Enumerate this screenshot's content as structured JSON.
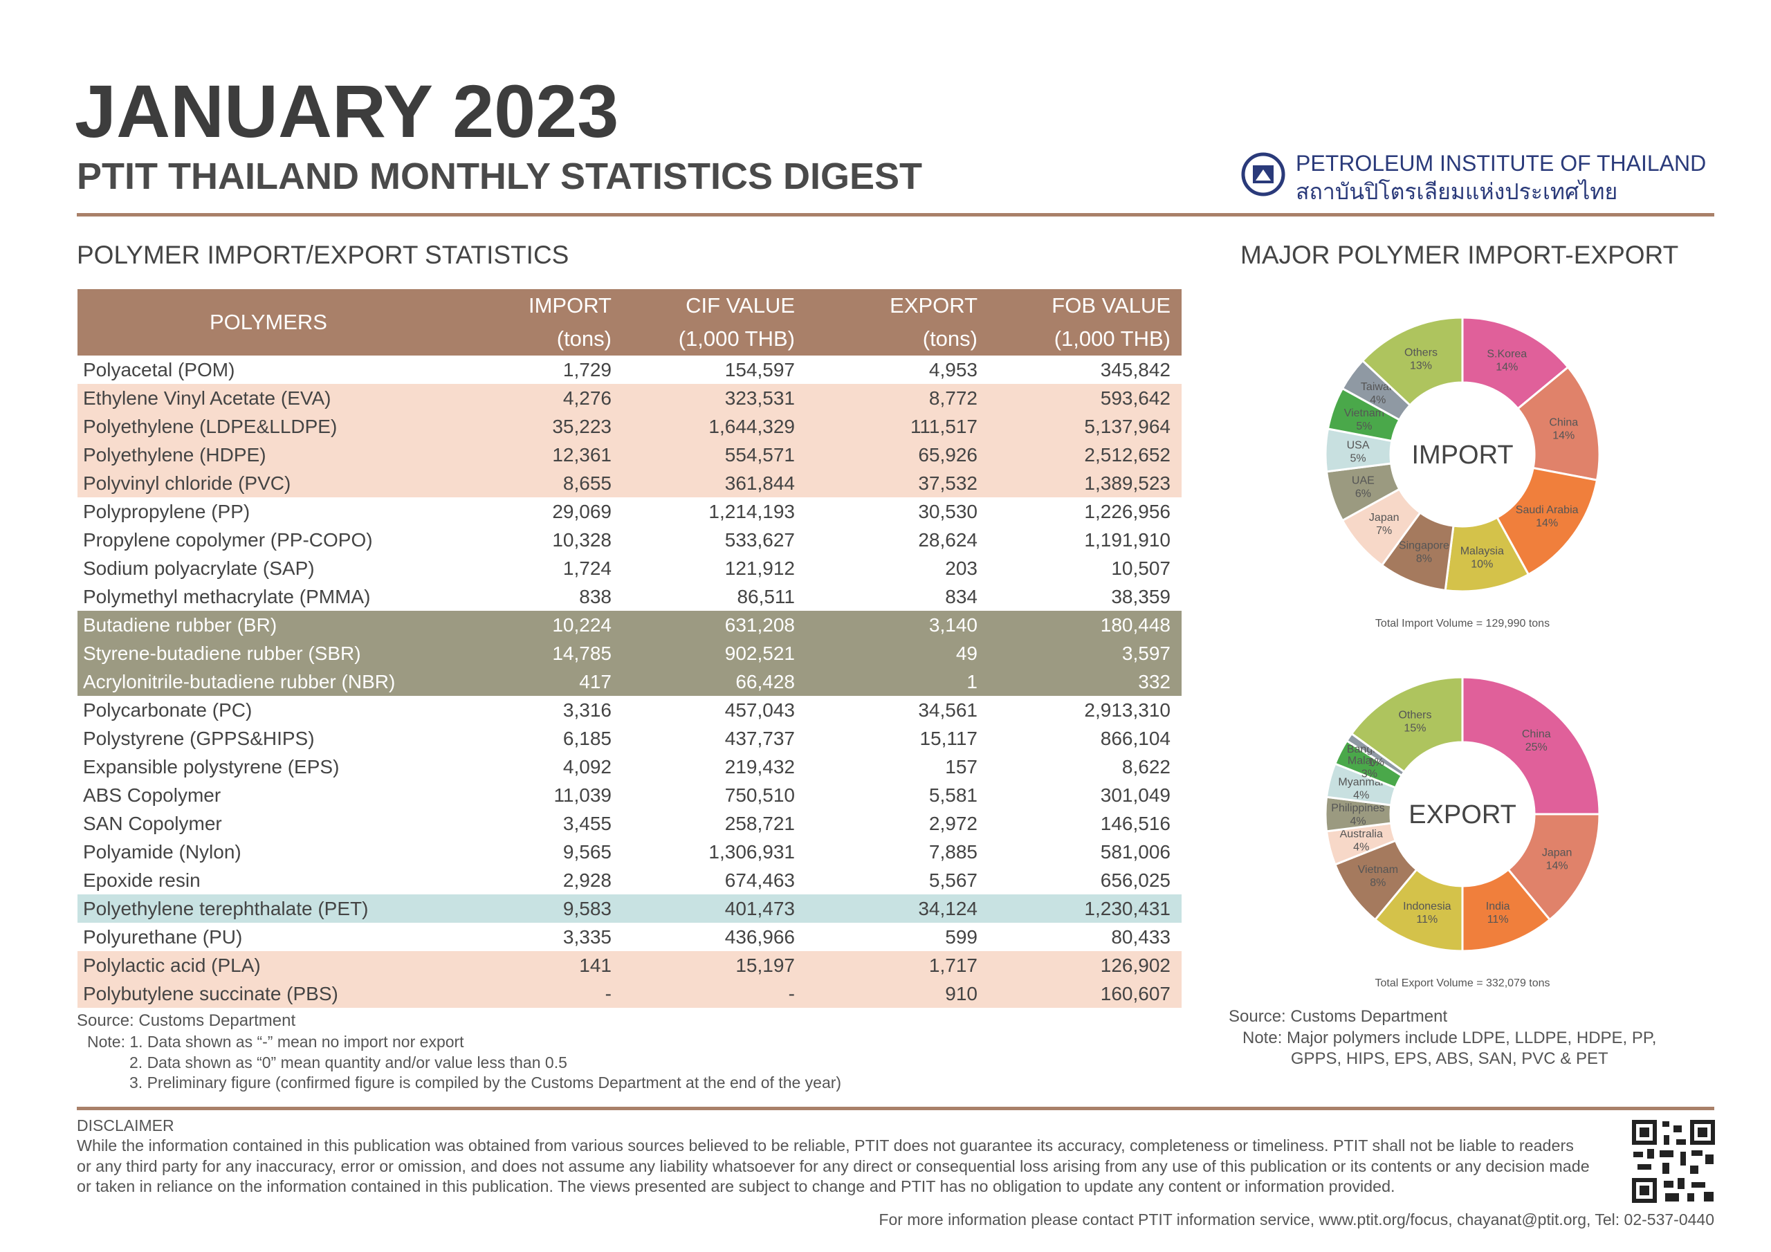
{
  "header": {
    "title": "JANUARY 2023",
    "subtitle": "PTIT THAILAND MONTHLY STATISTICS DIGEST",
    "org_en": "PETROLEUM INSTITUTE OF THAILAND",
    "org_th": "สถาบันปิโตรเลียมแห่งประเทศไทย"
  },
  "table": {
    "title": "POLYMER IMPORT/EXPORT STATISTICS",
    "header_color": "#a98069",
    "header": [
      [
        "POLYMERS"
      ],
      [
        "IMPORT",
        "(tons)"
      ],
      [
        "CIF VALUE",
        "(1,000 THB)"
      ],
      [
        "EXPORT",
        "(tons)"
      ],
      [
        "FOB VALUE",
        "(1,000 THB)"
      ]
    ],
    "rows": [
      {
        "cells": [
          "Polyacetal (POM)",
          "1,729",
          "154,597",
          "4,953",
          "345,842"
        ]
      },
      {
        "cells": [
          "Ethylene Vinyl Acetate (EVA)",
          "4,276",
          "323,531",
          "8,772",
          "593,642"
        ],
        "fill": "#f8dccd"
      },
      {
        "cells": [
          "Polyethylene (LDPE&LLDPE)",
          "35,223",
          "1,644,329",
          "111,517",
          "5,137,964"
        ],
        "fill": "#f8dccd"
      },
      {
        "cells": [
          "Polyethylene (HDPE)",
          "12,361",
          "554,571",
          "65,926",
          "2,512,652"
        ],
        "fill": "#f8dccd"
      },
      {
        "cells": [
          "Polyvinyl chloride (PVC)",
          "8,655",
          "361,844",
          "37,532",
          "1,389,523"
        ],
        "fill": "#f8dccd"
      },
      {
        "cells": [
          "Polypropylene (PP)",
          "29,069",
          "1,214,193",
          "30,530",
          "1,226,956"
        ]
      },
      {
        "cells": [
          "Propylene copolymer (PP-COPO)",
          "10,328",
          "533,627",
          "28,624",
          "1,191,910"
        ]
      },
      {
        "cells": [
          "Sodium polyacrylate (SAP)",
          "1,724",
          "121,912",
          "203",
          "10,507"
        ]
      },
      {
        "cells": [
          "Polymethyl methacrylate (PMMA)",
          "838",
          "86,511",
          "834",
          "38,359"
        ]
      },
      {
        "cells": [
          "Butadiene rubber (BR)",
          "10,224",
          "631,208",
          "3,140",
          "180,448"
        ],
        "fill": "#9c9a82",
        "text_color": "#ffffff"
      },
      {
        "cells": [
          "Styrene-butadiene rubber (SBR)",
          "14,785",
          "902,521",
          "49",
          "3,597"
        ],
        "fill": "#9c9a82",
        "text_color": "#ffffff"
      },
      {
        "cells": [
          "Acrylonitrile-butadiene rubber (NBR)",
          "417",
          "66,428",
          "1",
          "332"
        ],
        "fill": "#9c9a82",
        "text_color": "#ffffff"
      },
      {
        "cells": [
          "Polycarbonate (PC)",
          "3,316",
          "457,043",
          "34,561",
          "2,913,310"
        ]
      },
      {
        "cells": [
          "Polystyrene (GPPS&HIPS)",
          "6,185",
          "437,737",
          "15,117",
          "866,104"
        ]
      },
      {
        "cells": [
          "Expansible polystyrene (EPS)",
          "4,092",
          "219,432",
          "157",
          "8,622"
        ]
      },
      {
        "cells": [
          "ABS Copolymer",
          "11,039",
          "750,510",
          "5,581",
          "301,049"
        ]
      },
      {
        "cells": [
          "SAN Copolymer",
          "3,455",
          "258,721",
          "2,972",
          "146,516"
        ]
      },
      {
        "cells": [
          "Polyamide (Nylon)",
          "9,565",
          "1,306,931",
          "7,885",
          "581,006"
        ]
      },
      {
        "cells": [
          "Epoxide resin",
          "2,928",
          "674,463",
          "5,567",
          "656,025"
        ]
      },
      {
        "cells": [
          "Polyethylene terephthalate (PET)",
          "9,583",
          "401,473",
          "34,124",
          "1,230,431"
        ],
        "fill": "#c8e2e2"
      },
      {
        "cells": [
          "Polyurethane (PU)",
          "3,335",
          "436,966",
          "599",
          "80,433"
        ]
      },
      {
        "cells": [
          "Polylactic acid (PLA)",
          "141",
          "15,197",
          "1,717",
          "126,902"
        ],
        "fill": "#f8dccd"
      },
      {
        "cells": [
          "Polybutylene succinate (PBS)",
          "-",
          "-",
          "910",
          "160,607"
        ],
        "fill": "#f8dccd"
      }
    ],
    "source": "Source: Customs Department",
    "notes": [
      "Note: 1. Data shown as “-” mean no import nor export",
      "2. Data shown as “0” mean quantity and/or value less than 0.5",
      "3. Preliminary figure (confirmed figure is compiled by the Customs Department at the end of the year)"
    ]
  },
  "charts_title": "MAJOR POLYMER IMPORT-EXPORT",
  "chart_data": [
    {
      "type": "pie",
      "title": "IMPORT",
      "note": "Total Import Volume = 129,990 tons",
      "categories": [
        "S.Korea",
        "China",
        "Saudi Arabia",
        "Malaysia",
        "Singapore",
        "Japan",
        "UAE",
        "USA",
        "Vietnam",
        "Taiwan",
        "Others"
      ],
      "values": [
        14,
        14,
        14,
        10,
        8,
        7,
        6,
        5,
        5,
        4,
        13
      ],
      "value_labels": [
        "14%",
        "14%",
        "14%",
        "10%",
        "8%",
        "7%",
        "6%",
        "5%",
        "5%",
        "4%",
        "13%"
      ],
      "colors": [
        "#e0609a",
        "#e0826a",
        "#f07f3c",
        "#d4c24a",
        "#a57a5e",
        "#f7d8c8",
        "#9b9a80",
        "#c8e0e0",
        "#4aa84a",
        "#8f99a3",
        "#aec45e"
      ]
    },
    {
      "type": "pie",
      "title": "EXPORT",
      "note": "Total Export Volume = 332,079 tons",
      "categories": [
        "China",
        "Japan",
        "India",
        "Indonesia",
        "Vietnam",
        "Australia",
        "Philippines",
        "Myanmar",
        "Malaysia",
        "Bangladesh",
        "Others"
      ],
      "values": [
        25,
        14,
        11,
        11,
        8,
        4,
        4,
        4,
        3,
        1,
        15
      ],
      "value_labels": [
        "25%",
        "14%",
        "11%",
        "11%",
        "8%",
        "4%",
        "4%",
        "4%",
        "3%",
        "1%",
        "15%"
      ],
      "colors": [
        "#e0609a",
        "#e0826a",
        "#f07f3c",
        "#d4c24a",
        "#a57a5e",
        "#f7d8c8",
        "#9b9a80",
        "#c8e0e0",
        "#4aa84a",
        "#8f99a3",
        "#aec45e"
      ]
    }
  ],
  "charts_source": "Source: Customs Department",
  "charts_notes": [
    "Note: Major polymers include LDPE, LLDPE, HDPE, PP,",
    "GPPS, HIPS, EPS, ABS, SAN, PVC & PET"
  ],
  "disclaimer": {
    "heading": "DISCLAIMER",
    "lines": [
      "While the information contained in this publication was obtained from various sources believed to be reliable, PTIT does not guarantee its accuracy, completeness or timeliness. PTIT shall not be liable to readers",
      "or any third party for any inaccuracy, error or omission, and does not assume any liability whatsoever for any direct or consequential loss arising from any use of this publication or its contents or any decision made",
      "or taken in reliance on the information contained in this publication. The views presented are subject to change and PTIT has no obligation to update any content or information provided."
    ]
  },
  "footer": "For more information please contact  PTIT information service, www.ptit.org/focus, chayanat@ptit.org, Tel: 02-537-0440"
}
